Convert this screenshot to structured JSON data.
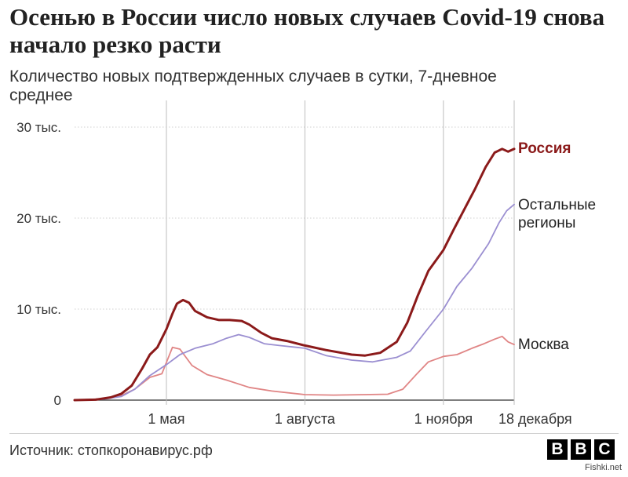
{
  "chart_data": {
    "type": "line",
    "title": "Осенью в России число новых случаев Covid-19 снова начало резко расти",
    "subtitle": "Количество новых подтвержденных случаев в сутки, 7-дневное среднее",
    "x_tick_labels": [
      "1 мая",
      "1 августа",
      "1 ноября",
      "18 декабря"
    ],
    "x_ticks": [
      "2020-05-01",
      "2020-08-01",
      "2020-11-01",
      "2020-12-18"
    ],
    "xlim": [
      "2020-03-01",
      "2020-12-18"
    ],
    "y_tick_labels": [
      "0",
      "10 тыс.",
      "20 тыс.",
      "30 тыс."
    ],
    "y_ticks": [
      0,
      10000,
      20000,
      30000
    ],
    "ylim": [
      0,
      30000
    ],
    "grid": "horizontal",
    "series": [
      {
        "name": "Россия",
        "color": "#8b1a1a",
        "points": [
          [
            "2020-03-01",
            0
          ],
          [
            "2020-03-15",
            50
          ],
          [
            "2020-03-25",
            300
          ],
          [
            "2020-04-01",
            700
          ],
          [
            "2020-04-08",
            1600
          ],
          [
            "2020-04-15",
            3500
          ],
          [
            "2020-04-20",
            5000
          ],
          [
            "2020-04-25",
            5800
          ],
          [
            "2020-05-01",
            7800
          ],
          [
            "2020-05-05",
            9500
          ],
          [
            "2020-05-08",
            10600
          ],
          [
            "2020-05-12",
            11000
          ],
          [
            "2020-05-16",
            10700
          ],
          [
            "2020-05-20",
            9800
          ],
          [
            "2020-05-28",
            9100
          ],
          [
            "2020-06-05",
            8800
          ],
          [
            "2020-06-12",
            8800
          ],
          [
            "2020-06-20",
            8700
          ],
          [
            "2020-06-25",
            8300
          ],
          [
            "2020-07-03",
            7400
          ],
          [
            "2020-07-10",
            6800
          ],
          [
            "2020-07-20",
            6500
          ],
          [
            "2020-08-01",
            6000
          ],
          [
            "2020-08-15",
            5500
          ],
          [
            "2020-09-01",
            5000
          ],
          [
            "2020-09-10",
            4900
          ],
          [
            "2020-09-20",
            5200
          ],
          [
            "2020-10-01",
            6400
          ],
          [
            "2020-10-08",
            8500
          ],
          [
            "2020-10-15",
            11500
          ],
          [
            "2020-10-22",
            14200
          ],
          [
            "2020-11-01",
            16500
          ],
          [
            "2020-11-08",
            18800
          ],
          [
            "2020-11-15",
            21000
          ],
          [
            "2020-11-22",
            23200
          ],
          [
            "2020-11-29",
            25600
          ],
          [
            "2020-12-05",
            27200
          ],
          [
            "2020-12-10",
            27600
          ],
          [
            "2020-12-14",
            27300
          ],
          [
            "2020-12-18",
            27600
          ]
        ]
      },
      {
        "name": "Остальные регионы",
        "color": "#9b8fd1",
        "points": [
          [
            "2020-03-01",
            0
          ],
          [
            "2020-03-20",
            100
          ],
          [
            "2020-04-01",
            400
          ],
          [
            "2020-04-10",
            1200
          ],
          [
            "2020-04-20",
            2700
          ],
          [
            "2020-05-01",
            3900
          ],
          [
            "2020-05-10",
            5000
          ],
          [
            "2020-05-20",
            5700
          ],
          [
            "2020-06-01",
            6200
          ],
          [
            "2020-06-10",
            6800
          ],
          [
            "2020-06-18",
            7200
          ],
          [
            "2020-06-25",
            6900
          ],
          [
            "2020-07-05",
            6200
          ],
          [
            "2020-07-15",
            6000
          ],
          [
            "2020-08-01",
            5700
          ],
          [
            "2020-08-15",
            4900
          ],
          [
            "2020-09-01",
            4400
          ],
          [
            "2020-09-15",
            4200
          ],
          [
            "2020-10-01",
            4700
          ],
          [
            "2020-10-10",
            5400
          ],
          [
            "2020-10-20",
            7500
          ],
          [
            "2020-11-01",
            10000
          ],
          [
            "2020-11-10",
            12500
          ],
          [
            "2020-11-20",
            14500
          ],
          [
            "2020-12-01",
            17200
          ],
          [
            "2020-12-08",
            19500
          ],
          [
            "2020-12-13",
            20800
          ],
          [
            "2020-12-18",
            21500
          ]
        ]
      },
      {
        "name": "Москва",
        "color": "#e08585",
        "points": [
          [
            "2020-03-01",
            0
          ],
          [
            "2020-03-20",
            150
          ],
          [
            "2020-04-01",
            500
          ],
          [
            "2020-04-10",
            1200
          ],
          [
            "2020-04-20",
            2500
          ],
          [
            "2020-04-28",
            2900
          ],
          [
            "2020-05-05",
            5800
          ],
          [
            "2020-05-10",
            5600
          ],
          [
            "2020-05-18",
            3800
          ],
          [
            "2020-05-28",
            2800
          ],
          [
            "2020-06-10",
            2200
          ],
          [
            "2020-06-25",
            1400
          ],
          [
            "2020-07-10",
            1000
          ],
          [
            "2020-08-01",
            600
          ],
          [
            "2020-08-20",
            550
          ],
          [
            "2020-09-10",
            600
          ],
          [
            "2020-09-25",
            650
          ],
          [
            "2020-10-05",
            1200
          ],
          [
            "2020-10-15",
            3000
          ],
          [
            "2020-10-22",
            4200
          ],
          [
            "2020-11-01",
            4800
          ],
          [
            "2020-11-10",
            5000
          ],
          [
            "2020-11-20",
            5700
          ],
          [
            "2020-11-28",
            6200
          ],
          [
            "2020-12-05",
            6700
          ],
          [
            "2020-12-10",
            7000
          ],
          [
            "2020-12-14",
            6400
          ],
          [
            "2020-12-18",
            6100
          ]
        ]
      }
    ],
    "series_labels": {
      "russia": "Россия",
      "others_line1": "Остальные",
      "others_line2": "регионы",
      "moscow": "Москва"
    }
  },
  "title": "Осенью в России число новых случаев Covid-19 снова начало резко расти",
  "subtitle": "Количество новых подтвержденных случаев в сутки, 7-дневное среднее",
  "footer": {
    "source": "Источник: стопкоронавирус.рф",
    "logo_letters": [
      "B",
      "B",
      "C"
    ],
    "watermark": "Fishki.net"
  }
}
